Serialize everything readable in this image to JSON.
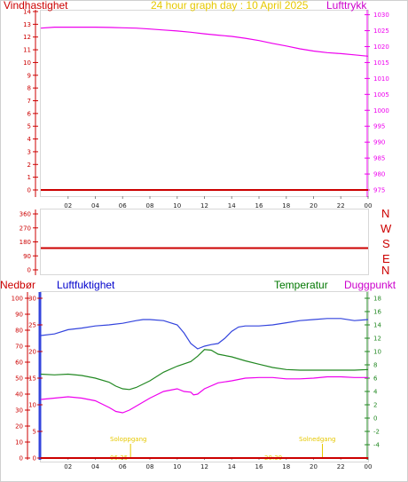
{
  "labels": {
    "title": "24 hour graph day : 10 April 2025",
    "wind_speed": "Vindhastighet",
    "pressure": "Lufttrykk",
    "precipitation": "Nedbør",
    "humidity": "Luftfuktighet",
    "temperature": "Temperatur",
    "dewpoint": "Duggpunkt",
    "dir_letters": [
      "N",
      "W",
      "S",
      "E",
      "N"
    ],
    "sunrise": "Soloppgang",
    "sunrise_time": "06:35",
    "sunset": "Solnedgang",
    "sunset_time": "20:39"
  },
  "colors": {
    "wind": "#cc0000",
    "pressure": "#ee00ee",
    "humidity": "#3344dd",
    "temperature": "#228822",
    "dewpoint": "#ee00ee",
    "precip": "#cc0000",
    "sun": "#e6c800"
  },
  "chart_data": [
    {
      "type": "line",
      "name": "wind-and-pressure",
      "x_ticks": [
        "02",
        "04",
        "06",
        "08",
        "10",
        "12",
        "14",
        "16",
        "18",
        "20",
        "22",
        "00"
      ],
      "left_axis": {
        "label": "Vindhastighet",
        "ticks": [
          0,
          1,
          2,
          3,
          4,
          5,
          6,
          7,
          8,
          9,
          10,
          11,
          12,
          13,
          14
        ],
        "ylim": [
          0,
          14
        ]
      },
      "right_axis": {
        "label": "Lufttrykk",
        "ticks": [
          975,
          980,
          985,
          990,
          995,
          1000,
          1005,
          1010,
          1015,
          1020,
          1025,
          1030
        ],
        "ylim": [
          975,
          1031
        ]
      },
      "series": [
        {
          "name": "Vindhastighet",
          "axis": "left",
          "x": [
            0,
            24
          ],
          "values": [
            0,
            0
          ]
        },
        {
          "name": "Lufttrykk",
          "axis": "right",
          "x": [
            0,
            1,
            2,
            3,
            4,
            5,
            6,
            7,
            8,
            9,
            10,
            11,
            12,
            13,
            14,
            15,
            16,
            17,
            18,
            19,
            20,
            21,
            22,
            23,
            24
          ],
          "values": [
            1025.8,
            1026.1,
            1026.1,
            1026.1,
            1026.1,
            1026.0,
            1025.9,
            1025.8,
            1025.5,
            1025.2,
            1024.9,
            1024.5,
            1024.0,
            1023.6,
            1023.2,
            1022.6,
            1021.9,
            1021.0,
            1020.2,
            1019.3,
            1018.6,
            1018.1,
            1017.8,
            1017.4,
            1017.0
          ]
        }
      ]
    },
    {
      "type": "line",
      "name": "wind-direction",
      "x_ticks": [
        "02",
        "04",
        "06",
        "08",
        "10",
        "12",
        "14",
        "16",
        "18",
        "20",
        "22",
        "00"
      ],
      "left_axis": {
        "ticks": [
          0,
          90,
          180,
          270,
          360
        ],
        "ylim": [
          0,
          360
        ]
      },
      "right_labels": [
        "N",
        "W",
        "S",
        "E",
        "N"
      ],
      "series": [
        {
          "name": "wind direction",
          "axis": "left",
          "x": [
            0,
            24
          ],
          "values": [
            140,
            140
          ]
        }
      ]
    },
    {
      "type": "line",
      "name": "humidity-temperature",
      "x_ticks": [
        "02",
        "04",
        "06",
        "08",
        "10",
        "12",
        "14",
        "16",
        "18",
        "20",
        "22",
        "00"
      ],
      "precip_axis": {
        "label": "Nedbør",
        "ticks": [
          0,
          10,
          20,
          30,
          40,
          50,
          60,
          70,
          80,
          90,
          100
        ],
        "ylim": [
          0,
          100
        ]
      },
      "humidity_axis": {
        "label": "Luftfuktighet",
        "ticks": [
          0,
          5,
          10,
          15,
          20,
          25,
          30
        ],
        "ylim": [
          0,
          30
        ]
      },
      "temp_axis": {
        "label": "Temperatur / Duggpunkt",
        "ticks": [
          -4,
          -2,
          0,
          2,
          4,
          6,
          8,
          10,
          12,
          14,
          16,
          18
        ],
        "ylim": [
          -6,
          18
        ]
      },
      "series": [
        {
          "name": "Luftfuktighet",
          "axis": "humidity",
          "x": [
            0,
            1,
            2,
            3,
            4,
            5,
            6,
            7,
            7.5,
            8,
            9,
            10,
            10.5,
            11,
            11.5,
            12,
            12.5,
            13,
            13.5,
            14,
            14.5,
            15,
            16,
            17,
            18,
            19,
            20,
            21,
            22,
            23,
            24
          ],
          "values": [
            23.0,
            23.3,
            24.1,
            24.4,
            24.8,
            25.0,
            25.3,
            25.8,
            26.0,
            26.0,
            25.8,
            25.0,
            23.5,
            21.5,
            20.5,
            21.0,
            21.3,
            21.5,
            22.5,
            23.8,
            24.6,
            24.8,
            24.8,
            25.0,
            25.4,
            25.8,
            26.0,
            26.2,
            26.2,
            25.8,
            26.0
          ]
        },
        {
          "name": "Temperatur",
          "axis": "temp",
          "x": [
            0,
            1,
            2,
            3,
            4,
            5,
            5.5,
            6,
            6.5,
            7,
            8,
            9,
            10,
            11,
            11.5,
            12,
            12.5,
            13,
            14,
            15,
            16,
            17,
            18,
            19,
            20,
            21,
            22,
            23,
            24
          ],
          "values": [
            6.6,
            6.5,
            6.6,
            6.4,
            6.0,
            5.4,
            4.8,
            4.4,
            4.3,
            4.6,
            5.6,
            6.9,
            7.8,
            8.5,
            9.3,
            10.3,
            10.2,
            9.6,
            9.2,
            8.6,
            8.1,
            7.6,
            7.3,
            7.2,
            7.2,
            7.2,
            7.2,
            7.2,
            7.3
          ]
        },
        {
          "name": "Duggpunkt",
          "axis": "temp",
          "x": [
            0,
            1,
            2,
            3,
            4,
            5,
            5.5,
            6,
            6.5,
            7,
            8,
            9,
            10,
            10.5,
            11,
            11.2,
            11.5,
            12,
            13,
            14,
            15,
            16,
            17,
            18,
            19,
            20,
            21,
            22,
            23,
            24
          ],
          "values": [
            2.8,
            3.0,
            3.2,
            3.0,
            2.6,
            1.6,
            1.0,
            0.8,
            1.2,
            1.8,
            3.0,
            4.0,
            4.4,
            4.0,
            3.9,
            3.5,
            3.6,
            4.4,
            5.3,
            5.6,
            6.0,
            6.1,
            6.1,
            5.9,
            5.9,
            6.0,
            6.2,
            6.2,
            6.1,
            6.1
          ]
        },
        {
          "name": "Nedbør",
          "axis": "precip",
          "x": [
            0,
            24
          ],
          "values": [
            0,
            0
          ]
        }
      ],
      "annotations": [
        {
          "text": "Soloppgang",
          "time": "06:35"
        },
        {
          "text": "Solnedgang",
          "time": "20:39"
        }
      ]
    }
  ]
}
